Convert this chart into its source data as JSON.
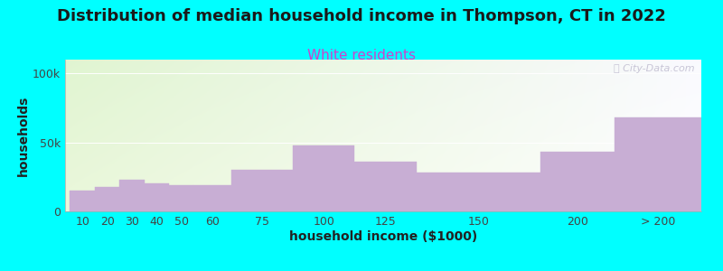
{
  "title": "Distribution of median household income in Thompson, CT in 2022",
  "subtitle": "White residents",
  "xlabel": "household income ($1000)",
  "ylabel": "households",
  "background_color": "#00FFFF",
  "bar_color": "#c8aed4",
  "bar_edge_color": "#c8aed4",
  "categories": [
    "10",
    "20",
    "30",
    "40",
    "50",
    "60",
    "75",
    "100",
    "125",
    "150",
    "200",
    "> 200"
  ],
  "values": [
    15000,
    18000,
    23000,
    20000,
    19000,
    19000,
    30000,
    48000,
    36000,
    28000,
    43000,
    68000
  ],
  "ylim": [
    0,
    110000
  ],
  "yticks": [
    0,
    50000,
    100000
  ],
  "ytick_labels": [
    "0",
    "50k",
    "100k"
  ],
  "title_fontsize": 13,
  "subtitle_fontsize": 11,
  "subtitle_color": "#cc44cc",
  "axis_label_fontsize": 10,
  "tick_fontsize": 9,
  "watermark_text": "ⓘ City-Data.com",
  "watermark_color": "#c0bcd0",
  "bar_positions": [
    0,
    1,
    2,
    3,
    4,
    5,
    6,
    7,
    8,
    9,
    10,
    11
  ],
  "bar_left_edges": [
    10,
    20,
    30,
    40,
    50,
    60,
    75,
    100,
    125,
    150,
    200,
    230
  ],
  "bar_right_edges": [
    20,
    30,
    40,
    50,
    60,
    75,
    100,
    125,
    150,
    200,
    230,
    265
  ],
  "xlim_left": 8,
  "xlim_right": 265,
  "grad_color_topleft": [
    0.88,
    0.96,
    0.82
  ],
  "grad_color_topright": [
    0.98,
    0.98,
    1.0
  ],
  "grad_color_bottomleft": [
    0.92,
    0.97,
    0.86
  ],
  "grad_color_bottomright": [
    1.0,
    1.0,
    1.0
  ]
}
